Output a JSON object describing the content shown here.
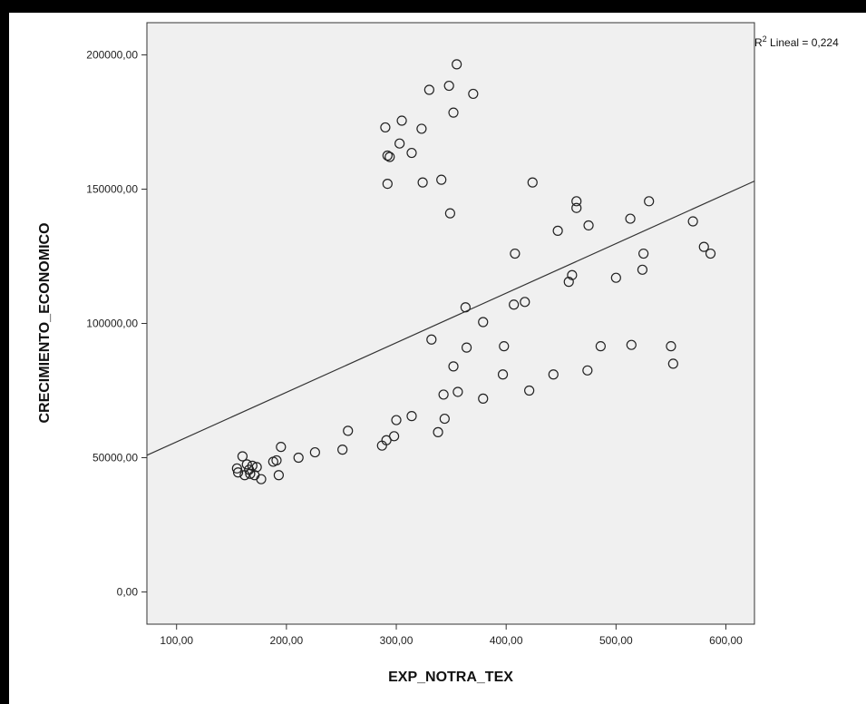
{
  "chart_data": {
    "type": "scatter",
    "xlabel": "EXP_NOTRA_TEX",
    "ylabel": "CRECIMIENTO_ECONOMICO",
    "xlim": [
      73,
      626
    ],
    "ylim": [
      -12000,
      212000
    ],
    "x_ticks": [
      100,
      200,
      300,
      400,
      500,
      600
    ],
    "x_tick_labels": [
      "100,00",
      "200,00",
      "300,00",
      "400,00",
      "500,00",
      "600,00"
    ],
    "y_ticks": [
      0,
      50000,
      100000,
      150000,
      200000
    ],
    "y_tick_labels": [
      "0,00",
      "50000,00",
      "100000,00",
      "150000,00",
      "200000,00"
    ],
    "fit_line": {
      "points": [
        [
          73,
          50900
        ],
        [
          626,
          153000
        ]
      ],
      "label_main": "R",
      "label_sup": "2",
      "label_rest": " Lineal = 0,224"
    },
    "points": [
      [
        155,
        46000
      ],
      [
        156,
        44500
      ],
      [
        160,
        50500
      ],
      [
        162,
        43500
      ],
      [
        164,
        47500
      ],
      [
        166,
        45500
      ],
      [
        167,
        44000
      ],
      [
        169,
        47000
      ],
      [
        171,
        43500
      ],
      [
        173,
        46500
      ],
      [
        177,
        42000
      ],
      [
        188,
        48500
      ],
      [
        191,
        49000
      ],
      [
        193,
        43500
      ],
      [
        195,
        54000
      ],
      [
        211,
        50000
      ],
      [
        226,
        52000
      ],
      [
        251,
        53000
      ],
      [
        256,
        60000
      ],
      [
        287,
        54500
      ],
      [
        291,
        56500
      ],
      [
        298,
        58000
      ],
      [
        300,
        64000
      ],
      [
        314,
        65500
      ],
      [
        338,
        59500
      ],
      [
        344,
        64500
      ],
      [
        343,
        73500
      ],
      [
        352,
        84000
      ],
      [
        356,
        74500
      ],
      [
        364,
        91000
      ],
      [
        363,
        106000
      ],
      [
        379,
        100500
      ],
      [
        379,
        72000
      ],
      [
        332,
        94000
      ],
      [
        290,
        173000
      ],
      [
        292,
        162500
      ],
      [
        294,
        162000
      ],
      [
        292,
        152000
      ],
      [
        303,
        167000
      ],
      [
        305,
        175500
      ],
      [
        314,
        163500
      ],
      [
        323,
        172500
      ],
      [
        324,
        152500
      ],
      [
        330,
        187000
      ],
      [
        341,
        153500
      ],
      [
        348,
        188500
      ],
      [
        349,
        141000
      ],
      [
        352,
        178500
      ],
      [
        355,
        196500
      ],
      [
        370,
        185500
      ],
      [
        397,
        81000
      ],
      [
        398,
        91500
      ],
      [
        407,
        107000
      ],
      [
        408,
        126000
      ],
      [
        417,
        108000
      ],
      [
        421,
        75000
      ],
      [
        424,
        152500
      ],
      [
        443,
        81000
      ],
      [
        447,
        134500
      ],
      [
        457,
        115500
      ],
      [
        460,
        118000
      ],
      [
        464,
        143000
      ],
      [
        464,
        145500
      ],
      [
        475,
        136500
      ],
      [
        474,
        82500
      ],
      [
        486,
        91500
      ],
      [
        500,
        117000
      ],
      [
        513,
        139000
      ],
      [
        514,
        92000
      ],
      [
        524,
        120000
      ],
      [
        525,
        126000
      ],
      [
        530,
        145500
      ],
      [
        550,
        91500
      ],
      [
        552,
        85000
      ],
      [
        570,
        138000
      ],
      [
        580,
        128500
      ],
      [
        586,
        126000
      ]
    ]
  }
}
